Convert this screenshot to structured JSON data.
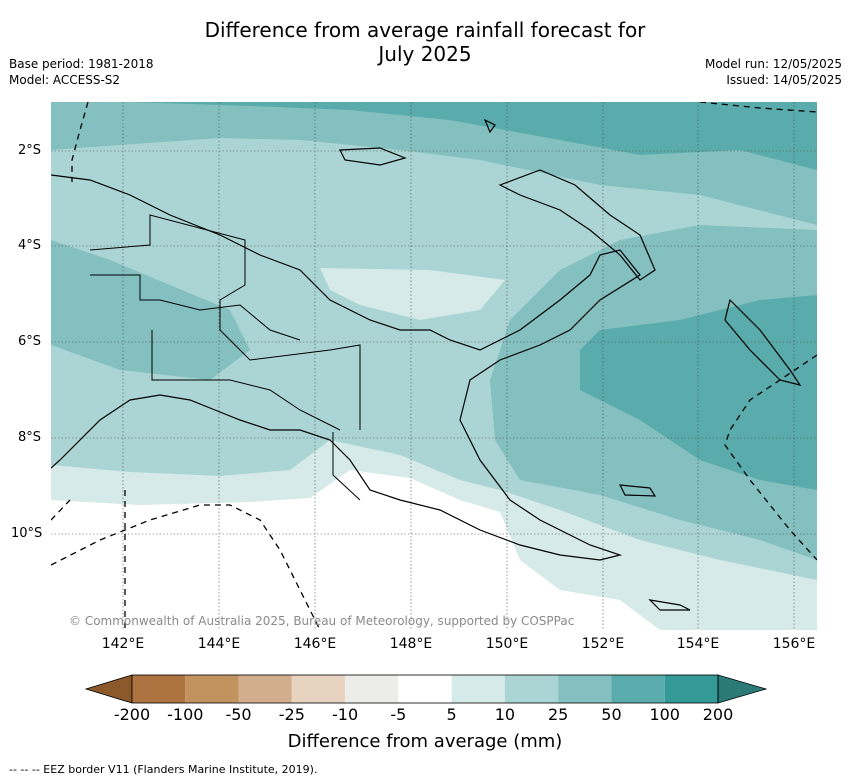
{
  "title_line1": "Difference from average rainfall forecast for",
  "title_line2": "July 2025",
  "meta_left": [
    "Base period: 1981-2018",
    "Model: ACCESS-S2"
  ],
  "meta_right": [
    "Model run: 12/05/2025",
    "Issued: 14/05/2025"
  ],
  "lon_labels": [
    "142°E",
    "144°E",
    "146°E",
    "148°E",
    "150°E",
    "152°E",
    "154°E",
    "156°E"
  ],
  "lat_labels": [
    "2°S",
    "4°S",
    "6°S",
    "8°S",
    "10°S"
  ],
  "copyright": "© Commonwealth of Australia 2025, Bureau of Meteorology, supported by COSPPac",
  "colorbar": {
    "title": "Difference from average (mm)",
    "labels": [
      "-200",
      "-100",
      "-50",
      "-25",
      "-10",
      "-5",
      "5",
      "10",
      "25",
      "50",
      "100",
      "200"
    ],
    "colors": [
      "#8c5a2a",
      "#ad7340",
      "#c2925f",
      "#d3ae8e",
      "#e7d3bf",
      "#ececea",
      "#ffffff",
      "#d5eae9",
      "#abd5d4",
      "#84c0bf",
      "#5aabab",
      "#339a98",
      "#2b7a78"
    ]
  },
  "legend_footer": "-- -- -- EEZ border V11 (Flanders Marine Institute, 2019)."
}
